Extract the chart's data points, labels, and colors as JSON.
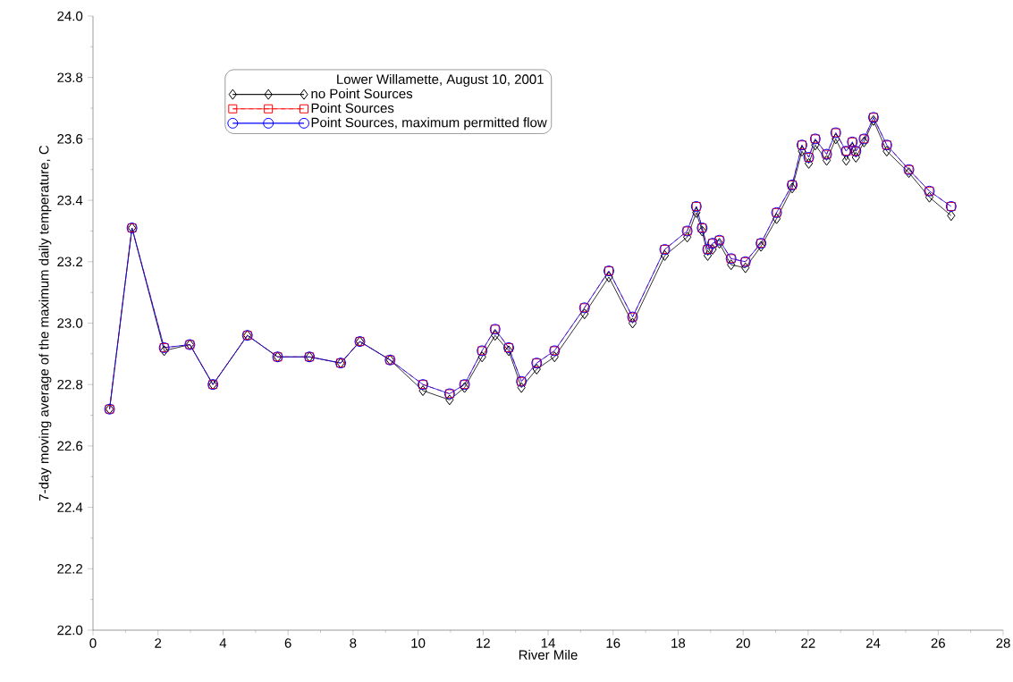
{
  "chart_data": {
    "type": "line",
    "xlabel": "River Mile",
    "ylabel": "7-day moving average of the maximum daily temperature, C",
    "legend_title": "Lower Willamette, August 10, 2001",
    "legend": "top left",
    "x": [
      0.51,
      1.2,
      2.19,
      2.98,
      3.69,
      4.75,
      5.68,
      6.66,
      7.62,
      8.21,
      9.14,
      10.15,
      10.97,
      11.43,
      11.97,
      12.37,
      12.79,
      13.18,
      13.65,
      14.2,
      15.12,
      15.87,
      16.6,
      17.59,
      18.28,
      18.56,
      18.74,
      18.91,
      19.06,
      19.27,
      19.63,
      20.07,
      20.55,
      21.03,
      21.51,
      21.81,
      22.02,
      22.22,
      22.57,
      22.85,
      23.17,
      23.36,
      23.47,
      23.72,
      24.01,
      24.42,
      25.1,
      25.73,
      26.4
    ],
    "series": [
      {
        "name": "no Point Sources",
        "color": "#000000",
        "marker": "diamond",
        "line_style": "solid",
        "values": [
          22.72,
          23.31,
          22.91,
          22.93,
          22.8,
          22.96,
          22.89,
          22.89,
          22.87,
          22.94,
          22.88,
          22.78,
          22.75,
          22.79,
          22.89,
          22.96,
          22.91,
          22.79,
          22.85,
          22.89,
          23.03,
          23.15,
          23.0,
          23.22,
          23.28,
          23.36,
          23.3,
          23.22,
          23.24,
          23.26,
          23.19,
          23.18,
          23.25,
          23.34,
          23.44,
          23.56,
          23.52,
          23.58,
          23.53,
          23.6,
          23.53,
          23.57,
          23.54,
          23.59,
          23.66,
          23.56,
          23.49,
          23.41,
          23.35
        ]
      },
      {
        "name": "Point Sources",
        "color": "#ff0000",
        "marker": "square",
        "line_style": "dashed",
        "values": [
          22.72,
          23.31,
          22.92,
          22.93,
          22.8,
          22.96,
          22.89,
          22.89,
          22.87,
          22.94,
          22.88,
          22.8,
          22.77,
          22.8,
          22.91,
          22.98,
          22.92,
          22.81,
          22.87,
          22.91,
          23.05,
          23.17,
          23.02,
          23.24,
          23.3,
          23.38,
          23.31,
          23.24,
          23.26,
          23.27,
          23.21,
          23.2,
          23.26,
          23.36,
          23.45,
          23.58,
          23.54,
          23.6,
          23.55,
          23.62,
          23.56,
          23.59,
          23.56,
          23.6,
          23.67,
          23.58,
          23.5,
          23.43,
          23.38
        ]
      },
      {
        "name": "Point Sources, maximum permitted flow",
        "color": "#0000ff",
        "marker": "circle",
        "line_style": "solid",
        "values": [
          22.72,
          23.31,
          22.92,
          22.93,
          22.8,
          22.96,
          22.89,
          22.89,
          22.87,
          22.94,
          22.88,
          22.8,
          22.77,
          22.8,
          22.91,
          22.98,
          22.92,
          22.81,
          22.87,
          22.91,
          23.05,
          23.17,
          23.02,
          23.24,
          23.3,
          23.38,
          23.31,
          23.24,
          23.26,
          23.27,
          23.21,
          23.2,
          23.26,
          23.36,
          23.45,
          23.58,
          23.54,
          23.6,
          23.55,
          23.62,
          23.56,
          23.59,
          23.56,
          23.6,
          23.67,
          23.58,
          23.5,
          23.43,
          23.38
        ]
      }
    ],
    "xlim": [
      0,
      28
    ],
    "xticks": [
      0,
      2,
      4,
      6,
      8,
      10,
      12,
      14,
      16,
      18,
      20,
      22,
      24,
      26,
      28
    ],
    "ylim": [
      22,
      24
    ],
    "yticks": [
      {
        "value": 22,
        "label": "22.0"
      },
      {
        "value": 22.2,
        "label": "22.2"
      },
      {
        "value": 22.4,
        "label": "22.4"
      },
      {
        "value": 22.6,
        "label": "22.6"
      },
      {
        "value": 22.8,
        "label": "22.8"
      },
      {
        "value": 23,
        "label": "23.0"
      },
      {
        "value": 23.2,
        "label": "23.2"
      },
      {
        "value": 23.4,
        "label": "23.4"
      },
      {
        "value": 23.6,
        "label": "23.6"
      },
      {
        "value": 23.8,
        "label": "23.8"
      },
      {
        "value": 24,
        "label": "24.0"
      }
    ]
  }
}
